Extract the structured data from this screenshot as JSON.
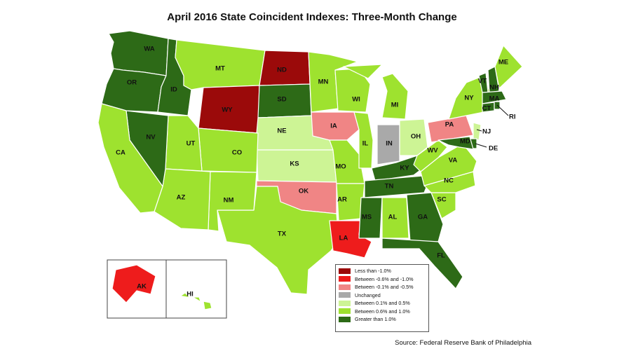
{
  "title": "April 2016 State Coincident Indexes: Three-Month Change",
  "source": "Source: Federal Reserve Bank of Philadelphia",
  "legend": [
    {
      "label": "Less than -1.0%",
      "color": "#9b0a0a"
    },
    {
      "label": "Between -0.6% and -1.0%",
      "color": "#ee1c1c"
    },
    {
      "label": "Between -0.1% and -0.5%",
      "color": "#f08585"
    },
    {
      "label": "Unchanged",
      "color": "#a9a9a9"
    },
    {
      "label": "Between 0.1% and 0.5%",
      "color": "#cdf495"
    },
    {
      "label": "Between 0.6% and 1.0%",
      "color": "#9ee22f"
    },
    {
      "label": "Greater than 1.0%",
      "color": "#2d6a17"
    }
  ],
  "states": {
    "WA": "Greater than 1.0%",
    "OR": "Greater than 1.0%",
    "ID": "Greater than 1.0%",
    "CA": "Between 0.6% and 1.0%",
    "NV": "Greater than 1.0%",
    "MT": "Between 0.6% and 1.0%",
    "WY": "Less than -1.0%",
    "UT": "Between 0.6% and 1.0%",
    "CO": "Between 0.6% and 1.0%",
    "AZ": "Between 0.6% and 1.0%",
    "NM": "Between 0.6% and 1.0%",
    "ND": "Less than -1.0%",
    "SD": "Greater than 1.0%",
    "NE": "Between 0.1% and 0.5%",
    "KS": "Between 0.1% and 0.5%",
    "OK": "Between -0.1% and -0.5%",
    "TX": "Between 0.6% and 1.0%",
    "MN": "Between 0.6% and 1.0%",
    "IA": "Between -0.1% and -0.5%",
    "MO": "Between 0.6% and 1.0%",
    "AR": "Between 0.6% and 1.0%",
    "LA": "Between -0.6% and -1.0%",
    "WI": "Between 0.6% and 1.0%",
    "IL": "Between 0.6% and 1.0%",
    "MI": "Between 0.6% and 1.0%",
    "IN": "Unchanged",
    "OH": "Between 0.1% and 0.5%",
    "KY": "Greater than 1.0%",
    "TN": "Greater than 1.0%",
    "MS": "Greater than 1.0%",
    "AL": "Between 0.6% and 1.0%",
    "GA": "Greater than 1.0%",
    "FL": "Greater than 1.0%",
    "SC": "Between 0.6% and 1.0%",
    "NC": "Between 0.6% and 1.0%",
    "VA": "Between 0.6% and 1.0%",
    "WV": "Between 0.6% and 1.0%",
    "PA": "Between -0.1% and -0.5%",
    "NY": "Between 0.6% and 1.0%",
    "ME": "Between 0.6% and 1.0%",
    "VT": "Greater than 1.0%",
    "NH": "Greater than 1.0%",
    "MA": "Greater than 1.0%",
    "CT": "Greater than 1.0%",
    "RI": "Greater than 1.0%",
    "NJ": "Between 0.1% and 0.5%",
    "DE": "Greater than 1.0%",
    "MD": "Greater than 1.0%",
    "AK": "Between -0.6% and -1.0%",
    "HI": "Between 0.6% and 1.0%"
  }
}
